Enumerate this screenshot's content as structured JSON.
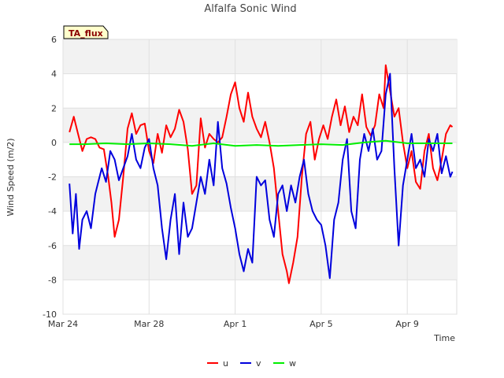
{
  "chart_data": {
    "type": "line",
    "title": "Alfalfa Sonic Wind",
    "badge": "TA_flux",
    "xlabel": "Time",
    "ylabel": "Wind Speed (m/2)",
    "ylim": [
      -10,
      6
    ],
    "yticks": [
      6,
      4,
      2,
      0,
      -2,
      -4,
      -6,
      -8,
      -10
    ],
    "xlim_days": [
      0,
      18.3
    ],
    "xticks": [
      {
        "label": "Mar 24",
        "day": 0
      },
      {
        "label": "Mar 28",
        "day": 4
      },
      {
        "label": "Apr 1",
        "day": 8
      },
      {
        "label": "Apr 5",
        "day": 12
      },
      {
        "label": "Apr 9",
        "day": 16
      }
    ],
    "grid": true,
    "series": [
      {
        "name": "u",
        "color": "#ff0000",
        "points": [
          [
            0.3,
            0.6
          ],
          [
            0.5,
            1.5
          ],
          [
            0.7,
            0.5
          ],
          [
            0.9,
            -0.5
          ],
          [
            1.1,
            0.2
          ],
          [
            1.3,
            0.3
          ],
          [
            1.5,
            0.2
          ],
          [
            1.7,
            -0.3
          ],
          [
            1.9,
            -0.4
          ],
          [
            2.1,
            -2.0
          ],
          [
            2.25,
            -3.5
          ],
          [
            2.4,
            -5.5
          ],
          [
            2.6,
            -4.5
          ],
          [
            2.8,
            -2.0
          ],
          [
            3.0,
            0.8
          ],
          [
            3.2,
            1.7
          ],
          [
            3.4,
            0.5
          ],
          [
            3.6,
            1.0
          ],
          [
            3.8,
            1.1
          ],
          [
            4.0,
            -0.5
          ],
          [
            4.2,
            -1.2
          ],
          [
            4.4,
            0.5
          ],
          [
            4.6,
            -0.6
          ],
          [
            4.8,
            1.0
          ],
          [
            5.0,
            0.3
          ],
          [
            5.2,
            0.8
          ],
          [
            5.4,
            1.9
          ],
          [
            5.6,
            1.2
          ],
          [
            5.8,
            -0.4
          ],
          [
            6.0,
            -3.0
          ],
          [
            6.2,
            -2.5
          ],
          [
            6.4,
            1.4
          ],
          [
            6.6,
            -0.3
          ],
          [
            6.8,
            0.5
          ],
          [
            7.0,
            0.2
          ],
          [
            7.2,
            0.0
          ],
          [
            7.4,
            0.3
          ],
          [
            7.6,
            1.5
          ],
          [
            7.8,
            2.8
          ],
          [
            8.0,
            3.5
          ],
          [
            8.2,
            2.0
          ],
          [
            8.4,
            1.2
          ],
          [
            8.6,
            2.9
          ],
          [
            8.8,
            1.5
          ],
          [
            9.0,
            0.8
          ],
          [
            9.2,
            0.3
          ],
          [
            9.4,
            1.2
          ],
          [
            9.6,
            0.0
          ],
          [
            9.8,
            -1.5
          ],
          [
            10.0,
            -4.0
          ],
          [
            10.2,
            -6.5
          ],
          [
            10.4,
            -7.5
          ],
          [
            10.5,
            -8.2
          ],
          [
            10.7,
            -7.0
          ],
          [
            10.9,
            -5.5
          ],
          [
            11.1,
            -2.0
          ],
          [
            11.3,
            0.5
          ],
          [
            11.5,
            1.2
          ],
          [
            11.7,
            -1.0
          ],
          [
            11.9,
            0.2
          ],
          [
            12.1,
            1.0
          ],
          [
            12.3,
            0.2
          ],
          [
            12.5,
            1.5
          ],
          [
            12.7,
            2.5
          ],
          [
            12.9,
            1.0
          ],
          [
            13.1,
            2.1
          ],
          [
            13.3,
            0.6
          ],
          [
            13.5,
            1.5
          ],
          [
            13.7,
            1.0
          ],
          [
            13.9,
            2.8
          ],
          [
            14.1,
            0.9
          ],
          [
            14.3,
            0.4
          ],
          [
            14.5,
            1.0
          ],
          [
            14.7,
            2.8
          ],
          [
            14.9,
            2.0
          ],
          [
            15.0,
            4.5
          ],
          [
            15.2,
            3.0
          ],
          [
            15.4,
            1.5
          ],
          [
            15.6,
            2.0
          ],
          [
            15.8,
            0.0
          ],
          [
            16.0,
            -1.5
          ],
          [
            16.2,
            -0.5
          ],
          [
            16.4,
            -2.3
          ],
          [
            16.6,
            -2.7
          ],
          [
            16.8,
            -0.5
          ],
          [
            17.0,
            0.5
          ],
          [
            17.2,
            -1.5
          ],
          [
            17.4,
            -2.2
          ],
          [
            17.6,
            -1.0
          ],
          [
            17.8,
            0.5
          ],
          [
            18.0,
            1.0
          ],
          [
            18.1,
            0.9
          ]
        ]
      },
      {
        "name": "v",
        "color": "#0000dd",
        "points": [
          [
            0.3,
            -2.4
          ],
          [
            0.45,
            -5.3
          ],
          [
            0.6,
            -3.0
          ],
          [
            0.75,
            -6.2
          ],
          [
            0.9,
            -4.5
          ],
          [
            1.1,
            -4.0
          ],
          [
            1.3,
            -5.0
          ],
          [
            1.5,
            -3.0
          ],
          [
            1.6,
            -2.5
          ],
          [
            1.8,
            -1.5
          ],
          [
            2.0,
            -2.3
          ],
          [
            2.2,
            -0.5
          ],
          [
            2.4,
            -1.0
          ],
          [
            2.6,
            -2.2
          ],
          [
            2.8,
            -1.5
          ],
          [
            3.0,
            -0.8
          ],
          [
            3.2,
            0.5
          ],
          [
            3.4,
            -1.0
          ],
          [
            3.6,
            -1.5
          ],
          [
            3.8,
            -0.3
          ],
          [
            4.0,
            0.2
          ],
          [
            4.2,
            -1.5
          ],
          [
            4.4,
            -2.5
          ],
          [
            4.6,
            -5.0
          ],
          [
            4.8,
            -6.8
          ],
          [
            5.0,
            -4.5
          ],
          [
            5.2,
            -3.0
          ],
          [
            5.4,
            -6.5
          ],
          [
            5.6,
            -3.5
          ],
          [
            5.8,
            -5.5
          ],
          [
            6.0,
            -5.0
          ],
          [
            6.2,
            -3.5
          ],
          [
            6.4,
            -2.0
          ],
          [
            6.6,
            -3.0
          ],
          [
            6.8,
            -1.0
          ],
          [
            7.0,
            -2.5
          ],
          [
            7.2,
            1.2
          ],
          [
            7.4,
            -1.5
          ],
          [
            7.6,
            -2.4
          ],
          [
            7.8,
            -3.8
          ],
          [
            8.0,
            -5.0
          ],
          [
            8.2,
            -6.5
          ],
          [
            8.4,
            -7.5
          ],
          [
            8.6,
            -6.2
          ],
          [
            8.8,
            -7.0
          ],
          [
            9.0,
            -2.0
          ],
          [
            9.2,
            -2.5
          ],
          [
            9.4,
            -2.2
          ],
          [
            9.6,
            -4.5
          ],
          [
            9.8,
            -5.5
          ],
          [
            10.0,
            -3.0
          ],
          [
            10.2,
            -2.5
          ],
          [
            10.4,
            -4.0
          ],
          [
            10.6,
            -2.5
          ],
          [
            10.8,
            -3.5
          ],
          [
            11.0,
            -2.0
          ],
          [
            11.2,
            -1.0
          ],
          [
            11.4,
            -3.0
          ],
          [
            11.6,
            -4.0
          ],
          [
            11.8,
            -4.5
          ],
          [
            12.0,
            -4.8
          ],
          [
            12.2,
            -6.0
          ],
          [
            12.4,
            -7.9
          ],
          [
            12.6,
            -4.5
          ],
          [
            12.8,
            -3.5
          ],
          [
            13.0,
            -1.0
          ],
          [
            13.2,
            0.2
          ],
          [
            13.4,
            -4.0
          ],
          [
            13.6,
            -5.0
          ],
          [
            13.8,
            -1.0
          ],
          [
            14.0,
            0.5
          ],
          [
            14.2,
            -0.5
          ],
          [
            14.4,
            0.8
          ],
          [
            14.6,
            -1.0
          ],
          [
            14.8,
            -0.5
          ],
          [
            15.0,
            2.8
          ],
          [
            15.2,
            4.0
          ],
          [
            15.4,
            -1.5
          ],
          [
            15.6,
            -6.0
          ],
          [
            15.8,
            -2.5
          ],
          [
            16.0,
            -1.0
          ],
          [
            16.2,
            0.5
          ],
          [
            16.4,
            -1.5
          ],
          [
            16.6,
            -1.0
          ],
          [
            16.8,
            -2.0
          ],
          [
            17.0,
            0.2
          ],
          [
            17.2,
            -0.5
          ],
          [
            17.4,
            0.5
          ],
          [
            17.6,
            -1.8
          ],
          [
            17.8,
            -0.8
          ],
          [
            18.0,
            -2.0
          ],
          [
            18.1,
            -1.7
          ]
        ]
      },
      {
        "name": "w",
        "color": "#00ee00",
        "points": [
          [
            0.3,
            -0.1
          ],
          [
            1.0,
            -0.1
          ],
          [
            2.0,
            -0.05
          ],
          [
            3.0,
            -0.1
          ],
          [
            4.0,
            -0.05
          ],
          [
            5.0,
            -0.1
          ],
          [
            6.0,
            -0.2
          ],
          [
            7.0,
            -0.05
          ],
          [
            8.0,
            -0.2
          ],
          [
            9.0,
            -0.15
          ],
          [
            10.0,
            -0.2
          ],
          [
            11.0,
            -0.15
          ],
          [
            12.0,
            -0.1
          ],
          [
            13.0,
            -0.15
          ],
          [
            14.0,
            0.0
          ],
          [
            15.0,
            0.1
          ],
          [
            16.0,
            -0.05
          ],
          [
            17.0,
            -0.05
          ],
          [
            18.1,
            -0.05
          ]
        ]
      }
    ],
    "legend": [
      {
        "label": "u",
        "color": "#ff0000"
      },
      {
        "label": "v",
        "color": "#0000dd"
      },
      {
        "label": "w",
        "color": "#00ee00"
      }
    ]
  }
}
